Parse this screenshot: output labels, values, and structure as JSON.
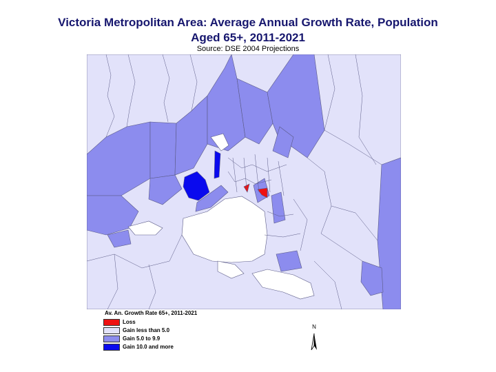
{
  "title_lines": [
    "Victoria Metropolitan Area: Average Annual Growth Rate, Population",
    "Aged 65+, 2011-2021"
  ],
  "source": "Source: DSE 2004 Projections",
  "legend": {
    "title": "Av. An. Growth Rate 65+, 2011-2021",
    "items": [
      {
        "label": "Loss",
        "color": "#ee1111"
      },
      {
        "label": "Gain less than 5.0",
        "color": "#e2e2fa"
      },
      {
        "label": "Gain 5.0 to 9.9",
        "color": "#8c8cee"
      },
      {
        "label": "Gain 10.0 and more",
        "color": "#0a0aee"
      }
    ]
  },
  "north_label": "N",
  "colors": {
    "title": "#16166e",
    "boundary": "#5a5a86",
    "water": "#ffffff"
  }
}
